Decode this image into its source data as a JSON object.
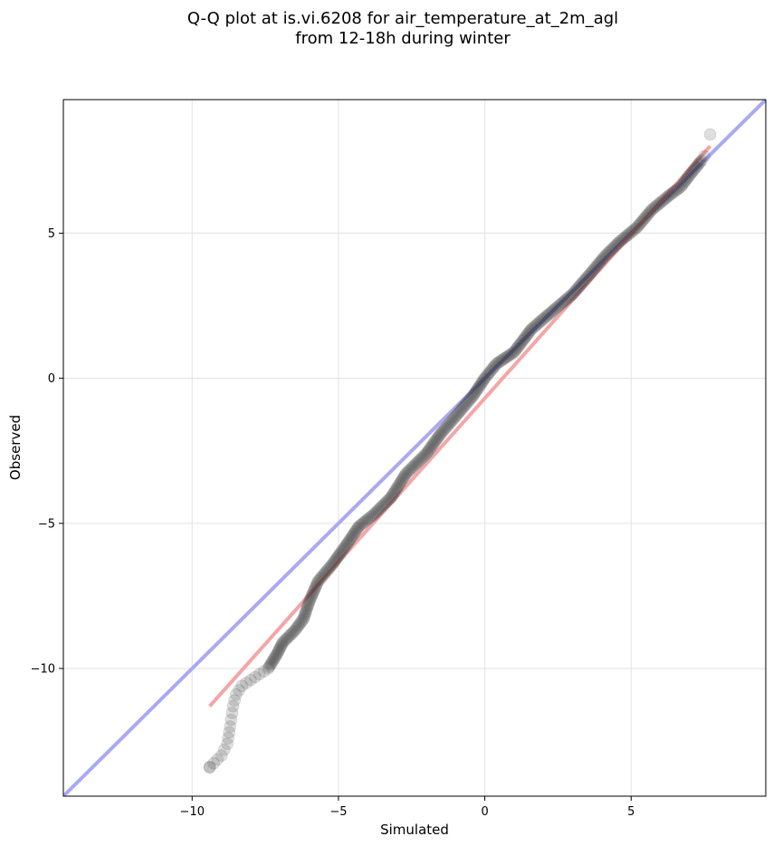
{
  "chart_data": {
    "type": "scatter",
    "title_line1": "Q-Q plot at is.vi.6208 for air_temperature_at_2m_agl",
    "title_line2": "from 12-18h during winter",
    "xlabel": "Simulated",
    "ylabel": "Observed",
    "xlim": [
      -14.4,
      9.6
    ],
    "ylim": [
      -14.4,
      9.6
    ],
    "x_ticks": [
      -10,
      -5,
      0,
      5
    ],
    "y_ticks": [
      -10,
      -5,
      0,
      5
    ],
    "x_tick_labels": [
      "−10",
      "−5",
      "0",
      "5"
    ],
    "y_tick_labels": [
      "−10",
      "−5",
      "0",
      "5"
    ],
    "grid": true,
    "identity_line": {
      "color": "#aaaaf2",
      "x": [
        -14.4,
        9.6
      ],
      "y": [
        -14.4,
        9.6
      ]
    },
    "fit_line": {
      "color": "#f4a6a6",
      "x": [
        -9.4,
        7.7
      ],
      "y": [
        -11.3,
        8.0
      ]
    },
    "point_color": "#000000",
    "quantile_curve": [
      [
        -9.4,
        -13.4
      ],
      [
        -9.0,
        -13.0
      ],
      [
        -8.8,
        -12.6
      ],
      [
        -8.7,
        -12.0
      ],
      [
        -8.6,
        -11.3
      ],
      [
        -8.5,
        -10.9
      ],
      [
        -8.3,
        -10.6
      ],
      [
        -8.0,
        -10.4
      ],
      [
        -7.7,
        -10.2
      ],
      [
        -7.4,
        -10.0
      ],
      [
        -7.1,
        -9.5
      ],
      [
        -6.9,
        -9.1
      ],
      [
        -6.5,
        -8.7
      ],
      [
        -6.2,
        -8.3
      ],
      [
        -6.0,
        -7.7
      ],
      [
        -5.7,
        -7.0
      ],
      [
        -5.2,
        -6.4
      ],
      [
        -4.7,
        -5.7
      ],
      [
        -4.3,
        -5.1
      ],
      [
        -3.8,
        -4.7
      ],
      [
        -3.2,
        -4.1
      ],
      [
        -2.7,
        -3.3
      ],
      [
        -2.0,
        -2.6
      ],
      [
        -1.5,
        -1.9
      ],
      [
        -0.9,
        -1.2
      ],
      [
        -0.4,
        -0.6
      ],
      [
        0.0,
        0.0
      ],
      [
        0.4,
        0.5
      ],
      [
        1.0,
        0.9
      ],
      [
        1.6,
        1.7
      ],
      [
        2.3,
        2.3
      ],
      [
        3.0,
        2.9
      ],
      [
        3.6,
        3.6
      ],
      [
        4.1,
        4.2
      ],
      [
        4.6,
        4.7
      ],
      [
        5.2,
        5.2
      ],
      [
        5.7,
        5.8
      ],
      [
        6.3,
        6.3
      ],
      [
        6.7,
        6.6
      ],
      [
        7.0,
        7.0
      ],
      [
        7.4,
        7.5
      ],
      [
        7.6,
        7.8
      ]
    ],
    "outliers": [
      {
        "x": [
          -9.4
        ],
        "y": [
          -13.4
        ]
      },
      {
        "x": [
          7.7
        ],
        "y": [
          8.4
        ]
      }
    ]
  }
}
